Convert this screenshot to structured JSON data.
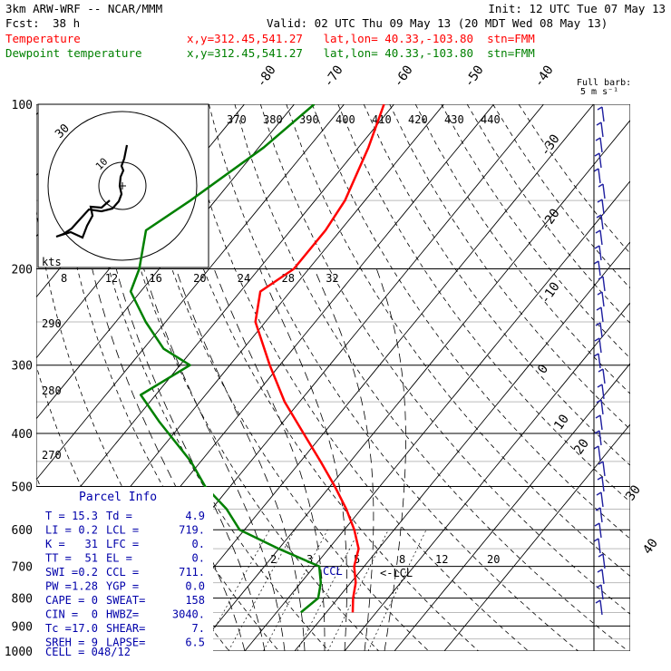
{
  "header": {
    "model": "3km ARW-WRF -- NCAR/MMM",
    "init": "Init: 12 UTC Tue 07 May 13",
    "fcst_label": "Fcst:",
    "fcst_value": "38 h",
    "valid": "Valid: 02 UTC Thu 09 May 13 (20 MDT Wed 08 May 13)",
    "temp_label": "Temperature",
    "dew_label": "Dewpoint temperature",
    "loc_temp": "x,y=312.45,541.27   lat,lon= 40.33,-103.80  stn=FMM",
    "loc_dew": "x,y=312.45,541.27   lat,lon= 40.33,-103.80  stn=FMM"
  },
  "colors": {
    "temperature": "#ff0000",
    "dewpoint": "#008000",
    "parcel_text": "#0000aa",
    "barb": "#2020a0"
  },
  "chart_data": {
    "type": "skew-t",
    "yscale": "log-pressure",
    "ylim": [
      1000,
      100
    ],
    "ylabel_units": "hPa",
    "pressure_ticks": [
      "100",
      "200",
      "300",
      "400",
      "500",
      "600",
      "700",
      "800",
      "900",
      "1000"
    ],
    "isotherm_labels": [
      "-80",
      "-70",
      "-60",
      "-50",
      "-40",
      "-30",
      "-20",
      "-10",
      "0",
      "10",
      "20",
      "30",
      "40"
    ],
    "theta_labels": [
      "370",
      "380",
      "390",
      "400",
      "410",
      "420",
      "430",
      "440"
    ],
    "low_theta_labels": [
      "290",
      "280",
      "270"
    ],
    "mixing_ratio_labels": [
      "2",
      "3",
      "5",
      "8",
      "12",
      "20"
    ],
    "series": [
      {
        "name": "Temperature",
        "points": [
          [
            100,
            -62
          ],
          [
            120,
            -58
          ],
          [
            150,
            -54
          ],
          [
            170,
            -53
          ],
          [
            200,
            -53
          ],
          [
            220,
            -56
          ],
          [
            250,
            -52
          ],
          [
            300,
            -42
          ],
          [
            350,
            -33
          ],
          [
            400,
            -24
          ],
          [
            450,
            -16
          ],
          [
            500,
            -9
          ],
          [
            550,
            -3
          ],
          [
            600,
            2
          ],
          [
            650,
            6
          ],
          [
            700,
            8
          ],
          [
            750,
            11
          ],
          [
            800,
            13
          ],
          [
            850,
            15.3
          ]
        ]
      },
      {
        "name": "Dewpoint temperature",
        "points": [
          [
            100,
            -76
          ],
          [
            120,
            -79
          ],
          [
            150,
            -85
          ],
          [
            170,
            -89
          ],
          [
            200,
            -84
          ],
          [
            220,
            -82
          ],
          [
            250,
            -74
          ],
          [
            280,
            -66
          ],
          [
            300,
            -58
          ],
          [
            340,
            -63
          ],
          [
            380,
            -55
          ],
          [
            450,
            -42
          ],
          [
            500,
            -35
          ],
          [
            550,
            -27
          ],
          [
            600,
            -21
          ],
          [
            650,
            -10
          ],
          [
            700,
            1
          ],
          [
            750,
            4
          ],
          [
            800,
            6
          ],
          [
            850,
            4.9
          ]
        ]
      }
    ],
    "annotations": [
      "CCL",
      "<-LCL"
    ],
    "hodograph": {
      "speed_unit": "kts",
      "ring_labels": [
        "10",
        "30"
      ],
      "speed_ticks": [
        "8",
        "12",
        "16",
        "20",
        "24",
        "28",
        "32"
      ]
    },
    "wind_barbs": {
      "legend": "Full barb:",
      "legend_units": "5 m s⁻¹"
    }
  },
  "parcel_info": {
    "title": "Parcel Info",
    "rows": [
      [
        "T  =",
        "15.3",
        "Td =",
        "4.9"
      ],
      [
        "LI =",
        "0.2",
        "LCL =",
        "719."
      ],
      [
        "K  =",
        "31",
        "LFC =",
        "0."
      ],
      [
        "TT =",
        "51",
        "EL  =",
        "0."
      ],
      [
        "SWI =",
        "0.2",
        "CCL =",
        "711."
      ],
      [
        "PW =",
        "1.28",
        "YGP =",
        "0.0"
      ],
      [
        "CAPE =",
        "0",
        "SWEAT=",
        "158"
      ],
      [
        "CIN =",
        "0",
        "HWBZ=",
        "3040."
      ],
      [
        "Tc =",
        "17.0",
        "SHEAR=",
        "7."
      ],
      [
        "SREH =",
        "9",
        "LAPSE=",
        "6.5"
      ]
    ],
    "cell": "CELL = 048/12"
  }
}
